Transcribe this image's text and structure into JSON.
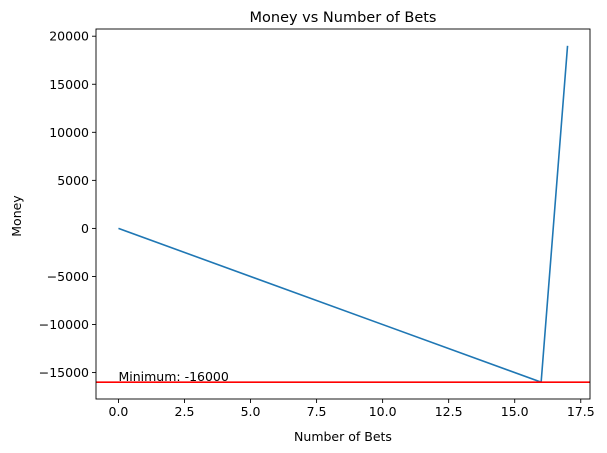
{
  "chart_data": {
    "type": "line",
    "title": "Money vs Number of Bets",
    "xlabel": "Number of Bets",
    "ylabel": "Money",
    "xlim": [
      -0.85,
      17.85
    ],
    "ylim": [
      -17750,
      20750
    ],
    "x_ticks": [
      0.0,
      2.5,
      5.0,
      7.5,
      10.0,
      12.5,
      15.0,
      17.5
    ],
    "x_tick_labels": [
      "0.0",
      "2.5",
      "5.0",
      "7.5",
      "10.0",
      "12.5",
      "15.0",
      "17.5"
    ],
    "y_ticks": [
      -15000,
      -10000,
      -5000,
      0,
      5000,
      10000,
      15000,
      20000
    ],
    "y_tick_labels": [
      "−15000",
      "−10000",
      "−5000",
      "0",
      "5000",
      "10000",
      "15000",
      "20000"
    ],
    "grid": false,
    "series": [
      {
        "color": "#1f77b4",
        "x": [
          0,
          16,
          17
        ],
        "y": [
          0,
          -16000,
          19000
        ]
      }
    ],
    "hlines": [
      {
        "y": -16000,
        "color": "#ff0000"
      }
    ],
    "annotations": [
      {
        "text": "Minimum: -16000",
        "x": 0,
        "y": -16000
      }
    ]
  }
}
